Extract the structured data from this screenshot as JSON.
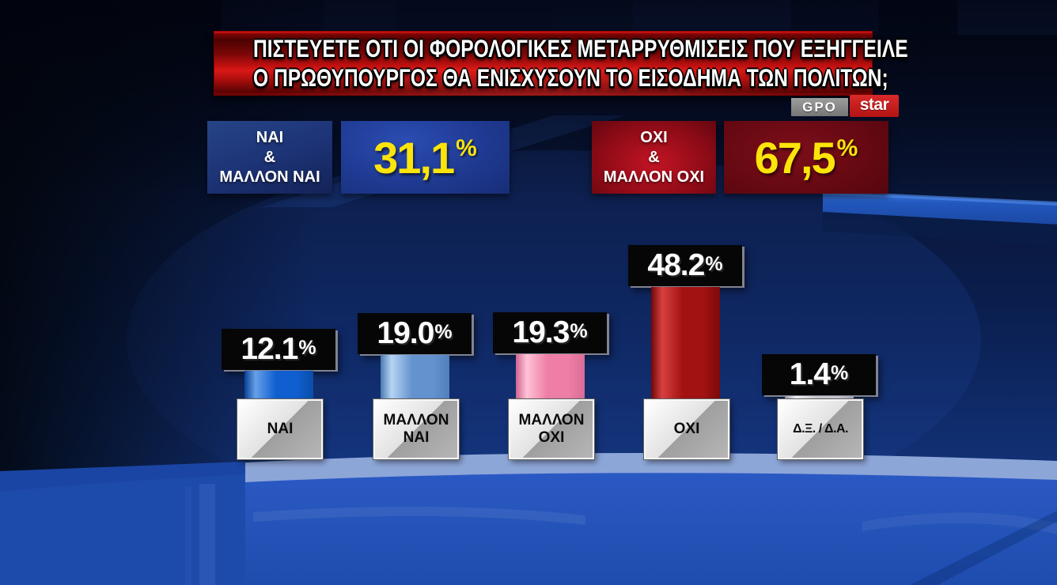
{
  "banner": {
    "line1": "ΠΙΣΤΕΥΕΤΕ ΟΤΙ ΟΙ ΦΟΡΟΛΟΓΙΚΕΣ ΜΕΤΑΡΡΥΘΜΙΣΕΙΣ ΠΟΥ ΕΞΗΓΓΕΙΛΕ",
    "line2": "Ο ΠΡΩΘΥΠΟΥΡΓΟΣ ΘΑ ΕΝΙΣΧΥΣΟΥΝ ΤΟ ΕΙΣΟΔΗΜΑ ΤΩΝ ΠΟΛΙΤΩΝ;"
  },
  "logos": {
    "gpo": "GPO",
    "star": "star"
  },
  "summary": [
    {
      "label": "ΝΑΙ\n&\nΜΑΛΛΟΝ ΝΑΙ",
      "value": "31,1",
      "percent_sign": "%",
      "theme": "blue"
    },
    {
      "label": "ΟΧΙ\n&\nΜΑΛΛΟΝ ΟΧΙ",
      "value": "67,5",
      "percent_sign": "%",
      "theme": "red"
    }
  ],
  "colors": {
    "banner_red": "#c01010",
    "yes_blue": "#203c96",
    "no_red": "#8c0b16",
    "value_yellow": "#fbe40a",
    "value_badge_black": "#060606",
    "floor_blue": "#2453b8",
    "floor_band": "#8da6d8",
    "background_navy": "#081434"
  },
  "chart_data": {
    "type": "bar",
    "title": "ΠΙΣΤΕΥΕΤΕ ΟΤΙ ΟΙ ΦΟΡΟΛΟΓΙΚΕΣ ΜΕΤΑΡΡΥΘΜΙΣΕΙΣ ΠΟΥ ΕΞΗΓΓΕΙΛΕ Ο ΠΡΩΘΥΠΟΥΡΓΟΣ ΘΑ ΕΝΙΣΧΥΣΟΥΝ ΤΟ ΕΙΣΟΔΗΜΑ ΤΩΝ ΠΟΛΙΤΩΝ;",
    "categories": [
      "ΝΑΙ",
      "ΜΑΛΛΟΝ ΝΑΙ",
      "ΜΑΛΛΟΝ ΟΧΙ",
      "ΟΧΙ",
      "Δ.Ξ. / Δ.Α."
    ],
    "values": [
      12.1,
      19.0,
      19.3,
      48.2,
      1.4
    ],
    "ylim": [
      0,
      50
    ],
    "grid": false,
    "legend": "none",
    "xlabel": "",
    "ylabel": "",
    "aggregates": [
      {
        "label": "ΝΑΙ & ΜΑΛΛΟΝ ΝΑΙ",
        "value": 31.1
      },
      {
        "label": "ΟΧΙ & ΜΑΛΛΟΝ ΟΧΙ",
        "value": 67.5
      }
    ],
    "bars": [
      {
        "category": "ΝΑΙ",
        "category_display": "ΝΑΙ",
        "value": 12.1,
        "display": "12.1",
        "sign": "%",
        "color": "#0f5fd0",
        "highlight": "#66a0e8",
        "edge_left": "#0a4096",
        "edge_right": "#0b4da8"
      },
      {
        "category": "ΜΑΛΛΟΝ ΝΑΙ",
        "category_display": "ΜΑΛΛΟΝ\nΝΑΙ",
        "value": 19.0,
        "display": "19.0",
        "sign": "%",
        "color": "#6492cf",
        "highlight": "#b6d4f4",
        "edge_left": "#4a7ab2",
        "edge_right": "#4f80bd"
      },
      {
        "category": "ΜΑΛΛΟΝ ΟΧΙ",
        "category_display": "ΜΑΛΛΟΝ\nΟΧΙ",
        "value": 19.3,
        "display": "19.3",
        "sign": "%",
        "color": "#ee7ea6",
        "highlight": "#ffc2d6",
        "edge_left": "#cf6490",
        "edge_right": "#d96d98"
      },
      {
        "category": "ΟΧΙ",
        "category_display": "ΟΧΙ",
        "value": 48.2,
        "display": "48.2",
        "sign": "%",
        "color": "#a31212",
        "highlight": "#d84040",
        "edge_left": "#6e0808",
        "edge_right": "#7c0a0a"
      },
      {
        "category": "Δ.Ξ. / Δ.Α.",
        "category_display": "Δ.Ξ. / Δ.Α.",
        "value": 1.4,
        "display": "1.4",
        "sign": "%",
        "color": "#c9c9d2",
        "highlight": "#f4f4f8",
        "edge_left": "#9898a4",
        "edge_right": "#a4a4b0"
      }
    ]
  }
}
